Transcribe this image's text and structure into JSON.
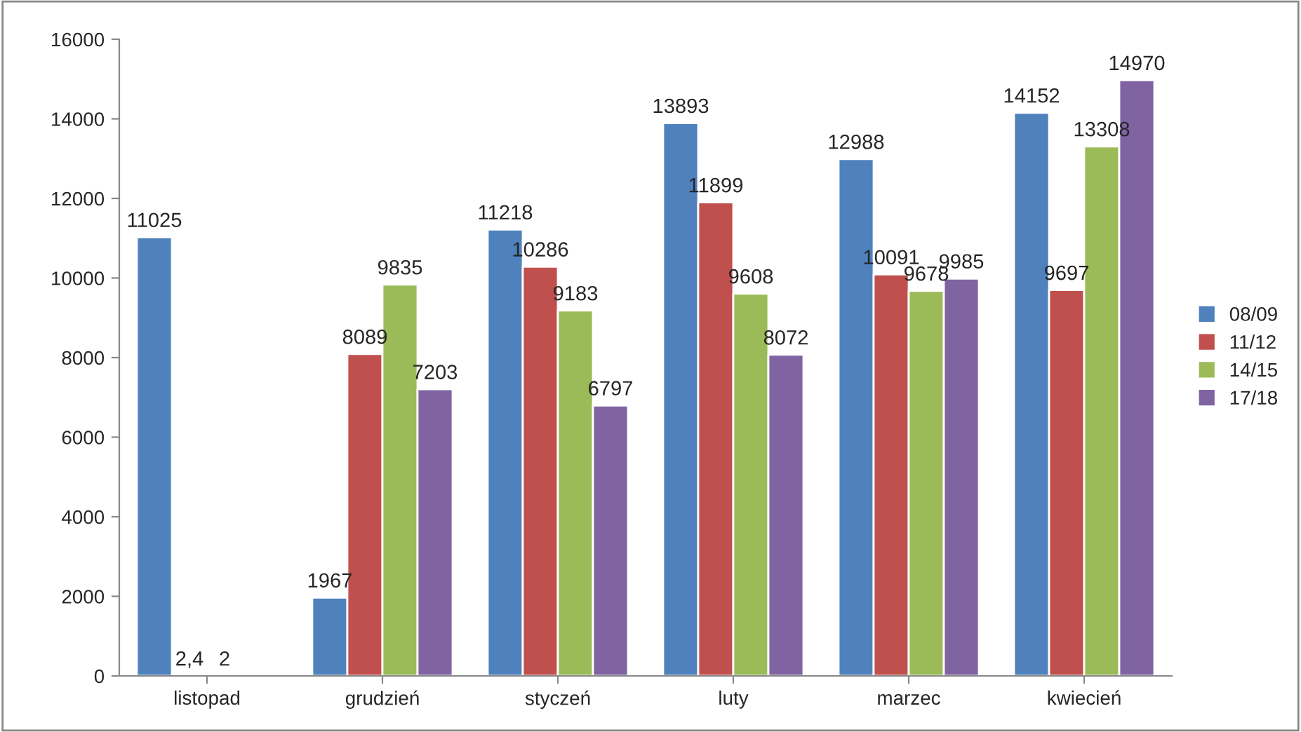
{
  "chart_data": {
    "type": "bar",
    "categories": [
      "listopad",
      "grudzień",
      "styczeń",
      "luty",
      "marzec",
      "kwiecień"
    ],
    "series": [
      {
        "name": "08/09",
        "color": "#4f81bd",
        "values": [
          11025,
          1967,
          11218,
          13893,
          12988,
          14152
        ],
        "value_labels": [
          "11025",
          "1967",
          "11218",
          "13893",
          "12988",
          "14152"
        ]
      },
      {
        "name": "11/12",
        "color": "#c0504d",
        "values": [
          2.4,
          8089,
          10286,
          11899,
          10091,
          9697
        ],
        "value_labels": [
          "2,4",
          "8089",
          "10286",
          "11899",
          "10091",
          "9697"
        ]
      },
      {
        "name": "14/15",
        "color": "#9bbb59",
        "values": [
          2,
          9835,
          9183,
          9608,
          9678,
          13308
        ],
        "value_labels": [
          "2",
          "9835",
          "9183",
          "9608",
          "9678",
          "13308"
        ]
      },
      {
        "name": "17/18",
        "color": "#8064a2",
        "values": [
          null,
          7203,
          6797,
          8072,
          9985,
          14970
        ],
        "value_labels": [
          null,
          "7203",
          "6797",
          "8072",
          "9985",
          "14970"
        ]
      }
    ],
    "ylim": [
      0,
      16000
    ],
    "yticks": [
      0,
      2000,
      4000,
      6000,
      8000,
      10000,
      12000,
      14000,
      16000
    ],
    "grid": false,
    "legend": "right"
  }
}
